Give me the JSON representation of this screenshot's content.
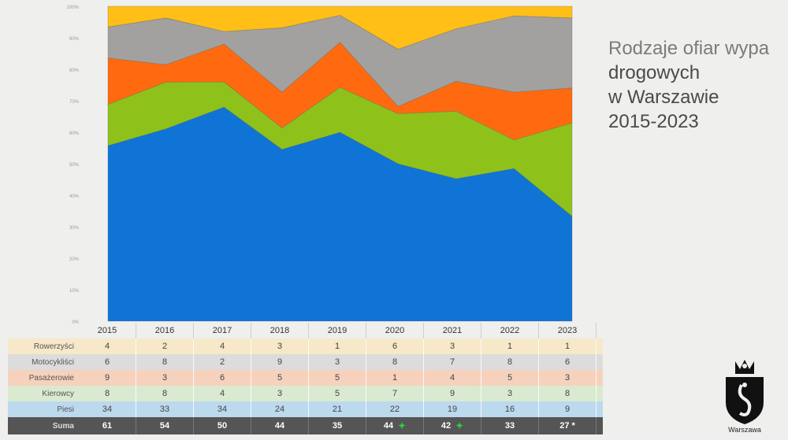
{
  "slide": {
    "title_lines": [
      "Rodzaje ofiar  wypa",
      "drogowych",
      "w Warszawie",
      "2015-2023"
    ],
    "logo_text": "Warszawa"
  },
  "chart_data": {
    "type": "area",
    "stacked": "percent",
    "categories": [
      "2015",
      "2016",
      "2017",
      "2018",
      "2019",
      "2020",
      "2021",
      "2022",
      "2023"
    ],
    "y_ticks": [
      "0%",
      "10%",
      "20%",
      "30%",
      "40%",
      "50%",
      "60%",
      "70%",
      "80%",
      "90%",
      "100%"
    ],
    "ylim": [
      0,
      100
    ],
    "series": [
      {
        "name": "Piesi",
        "values": [
          34,
          33,
          34,
          24,
          21,
          22,
          19,
          16,
          9
        ],
        "color": "#0f74d6",
        "row_bg": "#bcd9ee"
      },
      {
        "name": "Kierowcy",
        "values": [
          8,
          8,
          4,
          3,
          5,
          7,
          9,
          3,
          8
        ],
        "color": "#8ec21a",
        "row_bg": "#d9ead0"
      },
      {
        "name": "Pasażerowie",
        "values": [
          9,
          3,
          6,
          5,
          5,
          1,
          4,
          5,
          3
        ],
        "color": "#ff6a10",
        "row_bg": "#f6d2bd"
      },
      {
        "name": "Motocykliści",
        "values": [
          6,
          8,
          2,
          9,
          3,
          8,
          7,
          8,
          6
        ],
        "color": "#a3a19f",
        "row_bg": "#dcdcdc"
      },
      {
        "name": "Rowerzyści",
        "values": [
          4,
          2,
          4,
          3,
          1,
          6,
          3,
          1,
          1
        ],
        "color": "#ffbf16",
        "row_bg": "#f6e8c8"
      }
    ],
    "sum_label": "Suma",
    "sums": [
      "61",
      "54",
      "50",
      "44",
      "35",
      "44",
      "42",
      "33",
      "27"
    ],
    "sum_star_years": [
      "2020",
      "2021"
    ],
    "sum_asterisk_years": [
      "2023"
    ],
    "grid": false,
    "legend": "table-below"
  },
  "colors": {
    "sum_row_bg": "#555555",
    "star": "#2ecc40"
  },
  "icons": {
    "sum_star": "green-star-icon",
    "logo": "warsaw-coat-of-arms-icon"
  }
}
